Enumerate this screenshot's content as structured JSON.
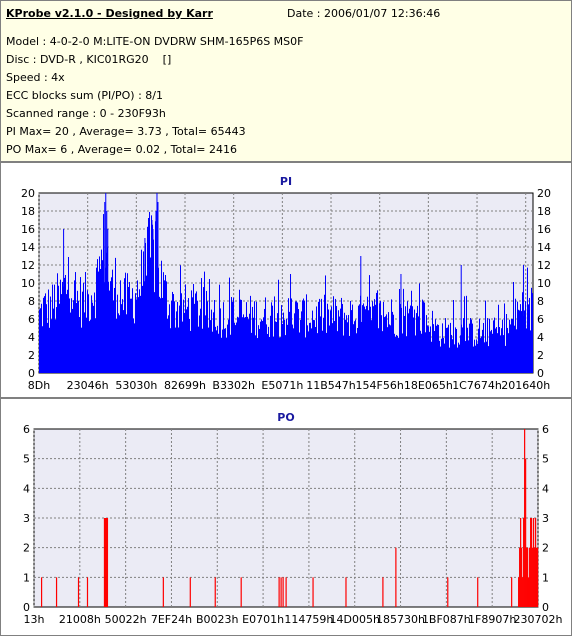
{
  "info": {
    "title": "KProbe v2.1.0 - Designed by Karr",
    "date": "Date : 2006/01/07 12:36:46",
    "model": "Model : 4-0-2-0 M:LITE-ON DVDRW SHM-165P6S MS0F",
    "disc": "Disc : DVD-R , KIC01RG20    []",
    "speed": "Speed : 4x",
    "ecc": "ECC blocks sum (PI/PO) : 8/1",
    "range": "Scanned range : 0 - 230F93h",
    "pi_stats": "PI Max= 20 , Average= 3.73 , Total= 65443",
    "po_stats": "PO Max= 6 , Average= 0.02 , Total= 2416"
  },
  "colors": {
    "pi_bars": "#0000ff",
    "po_bars": "#ff0000",
    "plot_bg": "#ebebf5",
    "grid": "#808080",
    "title": "#1a1aa0"
  },
  "chart_data": [
    {
      "type": "bar",
      "title": "PI",
      "ylim": [
        0,
        20
      ],
      "yticks": [
        0,
        2,
        4,
        6,
        8,
        10,
        12,
        14,
        16,
        18,
        20
      ],
      "grid": true,
      "x_tick_labels": [
        "8Dh",
        "23046h",
        "53030h",
        "82699h",
        "B3302h",
        "E5071h",
        "11B547h",
        "154F56h",
        "18E065h",
        "1C7674h",
        "201640h"
      ],
      "profile": [
        [
          0,
          7
        ],
        [
          4,
          8
        ],
        [
          8,
          8
        ],
        [
          12,
          8
        ],
        [
          16,
          9
        ],
        [
          20,
          9
        ],
        [
          24,
          10
        ],
        [
          28,
          11
        ],
        [
          30,
          13
        ],
        [
          32,
          11
        ],
        [
          34,
          9
        ],
        [
          36,
          9
        ],
        [
          40,
          9
        ],
        [
          44,
          9
        ],
        [
          48,
          9
        ],
        [
          52,
          10
        ],
        [
          56,
          11
        ],
        [
          60,
          12
        ],
        [
          64,
          15
        ],
        [
          66,
          17
        ],
        [
          68,
          13
        ],
        [
          72,
          10
        ],
        [
          76,
          11
        ],
        [
          80,
          10
        ],
        [
          84,
          9
        ],
        [
          88,
          9
        ],
        [
          92,
          9
        ],
        [
          96,
          10
        ],
        [
          100,
          11
        ],
        [
          104,
          12
        ],
        [
          108,
          14
        ],
        [
          112,
          15
        ],
        [
          114,
          15
        ],
        [
          116,
          14
        ],
        [
          120,
          12
        ],
        [
          124,
          10
        ],
        [
          128,
          9
        ],
        [
          132,
          8
        ],
        [
          136,
          8
        ],
        [
          140,
          8
        ],
        [
          150,
          8
        ],
        [
          160,
          8
        ],
        [
          170,
          7
        ],
        [
          180,
          7
        ],
        [
          190,
          7
        ],
        [
          200,
          7
        ],
        [
          210,
          7
        ],
        [
          220,
          7
        ],
        [
          230,
          7
        ],
        [
          240,
          7
        ],
        [
          250,
          7
        ],
        [
          260,
          7
        ],
        [
          270,
          7
        ],
        [
          280,
          7
        ],
        [
          290,
          7
        ],
        [
          300,
          7
        ],
        [
          310,
          7
        ],
        [
          320,
          7
        ],
        [
          330,
          7
        ],
        [
          340,
          7
        ],
        [
          350,
          7
        ],
        [
          360,
          7
        ],
        [
          370,
          7
        ],
        [
          380,
          7
        ],
        [
          390,
          6
        ],
        [
          400,
          5
        ],
        [
          410,
          5
        ],
        [
          420,
          5
        ],
        [
          430,
          5
        ],
        [
          440,
          5
        ],
        [
          450,
          5
        ],
        [
          460,
          5
        ],
        [
          470,
          6
        ],
        [
          475,
          7
        ],
        [
          480,
          8
        ],
        [
          485,
          9
        ],
        [
          488,
          7
        ],
        [
          492,
          9
        ]
      ],
      "spikes": [
        [
          65,
          19
        ],
        [
          66,
          20
        ],
        [
          67,
          18
        ],
        [
          68,
          16
        ],
        [
          24,
          16
        ],
        [
          116,
          18
        ],
        [
          117,
          20
        ],
        [
          118,
          19
        ],
        [
          112,
          17
        ],
        [
          113,
          16
        ],
        [
          105,
          15
        ],
        [
          250,
          11
        ],
        [
          320,
          13
        ],
        [
          360,
          11
        ],
        [
          420,
          12
        ],
        [
          482,
          12
        ],
        [
          486,
          11
        ]
      ]
    },
    {
      "type": "bar",
      "title": "PO",
      "ylim": [
        0,
        6
      ],
      "yticks": [
        0,
        1,
        2,
        3,
        4,
        5,
        6
      ],
      "grid": true,
      "x_tick_labels": [
        "13h",
        "21008h",
        "50022h",
        "7EF24h",
        "B0023h",
        "E0701h",
        "114759h",
        "14D005h",
        "185730h",
        "1BF087h",
        "1F8907h",
        "230702h"
      ],
      "points": [
        [
          7,
          1
        ],
        [
          22,
          1
        ],
        [
          44,
          1
        ],
        [
          53,
          1
        ],
        [
          70,
          3
        ],
        [
          71,
          3
        ],
        [
          72,
          3
        ],
        [
          73,
          3
        ],
        [
          129,
          1
        ],
        [
          156,
          1
        ],
        [
          181,
          1
        ],
        [
          207,
          1
        ],
        [
          245,
          1
        ],
        [
          247,
          1
        ],
        [
          249,
          1
        ],
        [
          252,
          1
        ],
        [
          279,
          1
        ],
        [
          312,
          1
        ],
        [
          349,
          1
        ],
        [
          362,
          2
        ],
        [
          414,
          1
        ],
        [
          444,
          1
        ],
        [
          478,
          1
        ],
        [
          485,
          1
        ],
        [
          486,
          2
        ],
        [
          487,
          3
        ],
        [
          488,
          2
        ],
        [
          489,
          1
        ],
        [
          490,
          3
        ],
        [
          491,
          6
        ],
        [
          492,
          5
        ],
        [
          493,
          2
        ],
        [
          494,
          2
        ],
        [
          495,
          1
        ],
        [
          496,
          2
        ],
        [
          497,
          3
        ],
        [
          498,
          3
        ],
        [
          499,
          2
        ],
        [
          500,
          3
        ],
        [
          501,
          2
        ],
        [
          502,
          3
        ],
        [
          503,
          2
        ],
        [
          504,
          2
        ]
      ]
    }
  ]
}
